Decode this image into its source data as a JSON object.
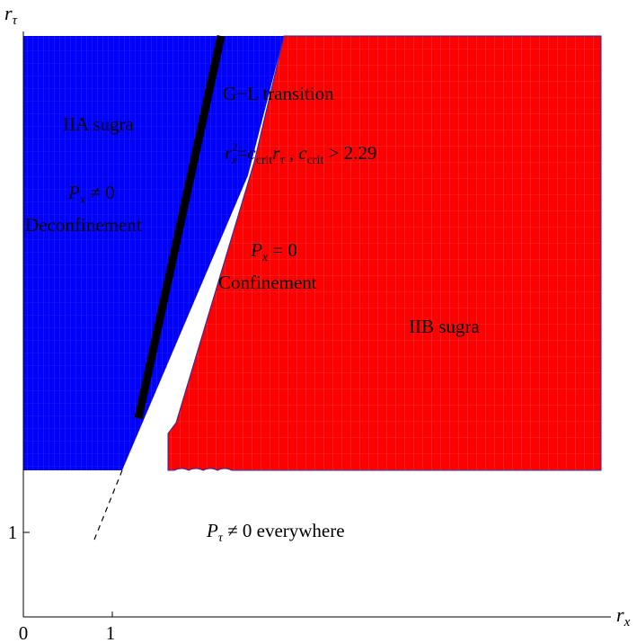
{
  "axes": {
    "x_label_base": "r",
    "x_label_sub": "x",
    "y_label_base": "r",
    "y_label_sub": "τ",
    "x_ticks": [
      "0",
      "1"
    ],
    "y_ticks": [
      "1"
    ]
  },
  "regions": {
    "iia": {
      "title": "IIA sugra",
      "p_base": "P",
      "p_sub": "x",
      "p_rel": " ≠ 0",
      "phase": "Deconfinement",
      "color": "#0000ff"
    },
    "iib": {
      "title": "IIB sugra",
      "p_base": "P",
      "p_sub": "x",
      "p_rel": " = 0",
      "phase": "Confinement",
      "color": "#ff0000"
    },
    "bottom": {
      "p_base": "P",
      "p_sub": "τ",
      "text": " ≠ 0 everywhere"
    }
  },
  "transition": {
    "title": "G−L transition",
    "r": "r",
    "r_sup": "2",
    "r_sub": "x",
    "eq": "=",
    "c": "c",
    "c_sub": "crit",
    "r2": "r",
    "r2_sub": "τ",
    "sep": " ,  ",
    "c2": "c",
    "c2_sub": "crit",
    "ineq": " > 2.29",
    "line_color": "#000000"
  }
}
